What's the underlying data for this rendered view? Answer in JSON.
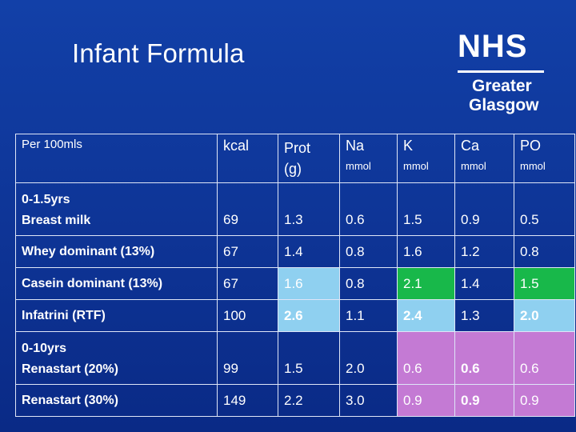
{
  "title": "Infant Formula",
  "logo": {
    "org": "NHS",
    "line1": "Greater",
    "line2": "Glasgow"
  },
  "colors": {
    "background": "#0a2a86",
    "highlight_blue": "#8fd0f0",
    "highlight_green": "#18b84a",
    "highlight_purple": "#c47ad4"
  },
  "table": {
    "header": {
      "label": "Per 100mls",
      "kcal": "kcal",
      "prot_line1": "Prot",
      "prot_line2": "(g)",
      "na": "Na",
      "na_unit": "mmol",
      "k": "K",
      "k_unit": "mmol",
      "ca": "Ca",
      "ca_unit": "mmol",
      "po": "PO",
      "po_unit": "mmol"
    },
    "groups": {
      "g1": "0-1.5yrs",
      "g2": "0-10yrs"
    },
    "rows": [
      {
        "label": "Breast milk",
        "kcal": "69",
        "prot": "1.3",
        "na": "0.6",
        "k": "1.5",
        "ca": "0.9",
        "po": "0.5"
      },
      {
        "label": "Whey dominant (13%)",
        "kcal": "67",
        "prot": "1.4",
        "na": "0.8",
        "k": "1.6",
        "ca": "1.2",
        "po": "0.8"
      },
      {
        "label": "Casein dominant (13%)",
        "kcal": "67",
        "prot": "1.6",
        "na": "0.8",
        "k": "2.1",
        "ca": "1.4",
        "po": "1.5"
      },
      {
        "label": "Infatrini (RTF)",
        "kcal": "100",
        "prot": "2.6",
        "na": "1.1",
        "k": "2.4",
        "ca": "1.3",
        "po": "2.0"
      },
      {
        "label": "Renastart (20%)",
        "kcal": "99",
        "prot": "1.5",
        "na": "2.0",
        "k": "0.6",
        "ca": "0.6",
        "po": "0.6"
      },
      {
        "label": "Renastart (30%)",
        "kcal": "149",
        "prot": "2.2",
        "na": "3.0",
        "k": "0.9",
        "ca": "0.9",
        "po": "0.9"
      }
    ]
  }
}
